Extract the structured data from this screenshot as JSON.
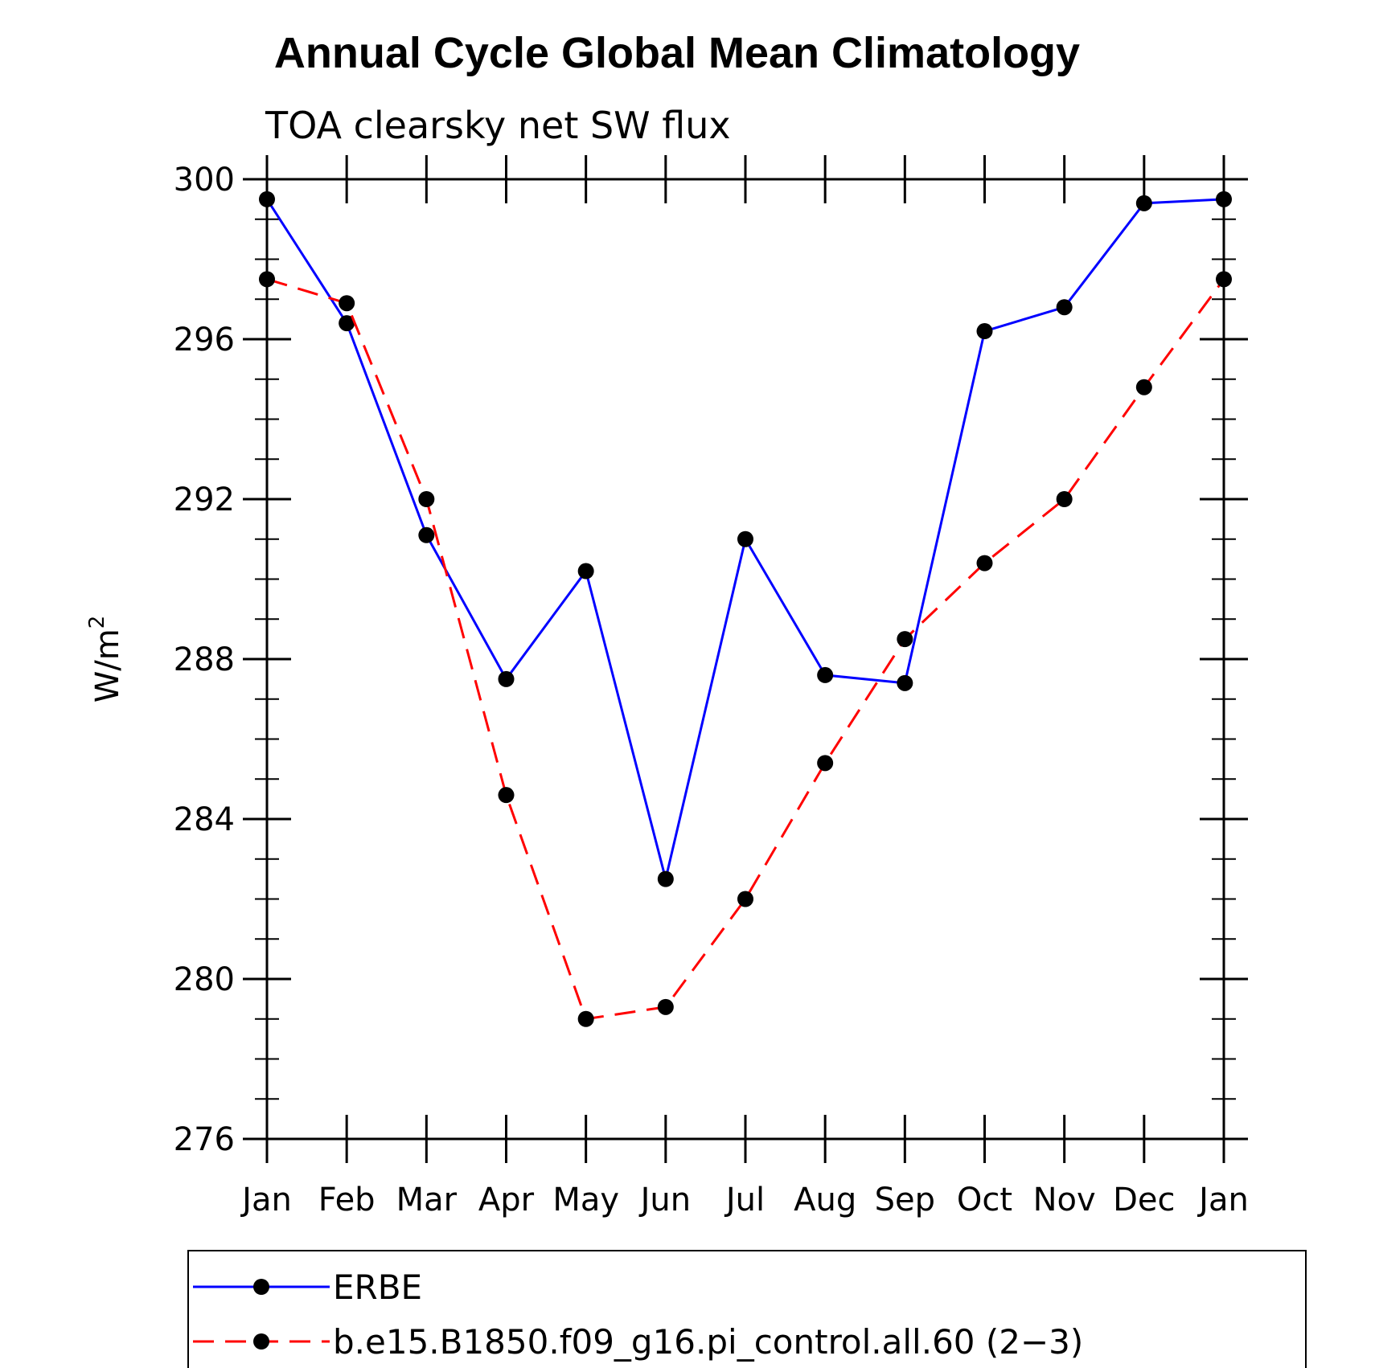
{
  "chart_data": {
    "type": "line",
    "title": "Annual Cycle Global Mean Climatology",
    "subtitle": "TOA clearsky net SW flux",
    "ylabel": "W/m",
    "ylabel_sup": "2",
    "xlabel": "",
    "categories": [
      "Jan",
      "Feb",
      "Mar",
      "Apr",
      "May",
      "Jun",
      "Jul",
      "Aug",
      "Sep",
      "Oct",
      "Nov",
      "Dec",
      "Jan"
    ],
    "ylim": [
      276,
      300
    ],
    "yticks": [
      "276",
      "280",
      "284",
      "288",
      "292",
      "296",
      "300"
    ],
    "ytick_values": [
      276,
      280,
      284,
      288,
      292,
      296,
      300
    ],
    "legend_position": "bottom",
    "series": [
      {
        "name": "ERBE",
        "color": "#0000ff",
        "dash": "solid",
        "values": [
          299.5,
          296.4,
          291.1,
          287.5,
          290.2,
          282.5,
          291.0,
          287.6,
          287.4,
          296.2,
          296.8,
          299.4,
          299.5
        ]
      },
      {
        "name": "b.e15.B1850.f09_g16.pi_control.all.60 (2−3)",
        "color": "#ff0000",
        "dash": "dashed",
        "values": [
          297.5,
          296.9,
          292.0,
          284.6,
          279.0,
          279.3,
          282.0,
          285.4,
          288.5,
          290.4,
          292.0,
          294.8,
          297.5
        ]
      }
    ],
    "marker_color": "#000000"
  }
}
